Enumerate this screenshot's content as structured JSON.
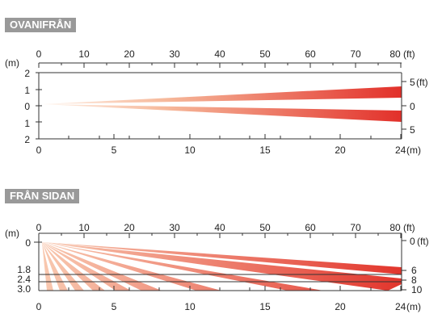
{
  "top_view": {
    "title": "OVANIFRÅN",
    "ft_ticks": [
      "0",
      "10",
      "20",
      "30",
      "40",
      "50",
      "60",
      "70",
      "80"
    ],
    "ft_unit": "(ft)",
    "m_ticks": [
      "0",
      "5",
      "10",
      "15",
      "20",
      "24"
    ],
    "m_unit": "(m)",
    "left_unit": "(m)",
    "left_ticks": [
      "2",
      "1",
      "0",
      "1",
      "2"
    ],
    "right_ticks": [
      "5",
      "0",
      "5"
    ],
    "right_unit": "(ft)"
  },
  "side_view": {
    "title": "FRÅN SIDAN",
    "ft_ticks": [
      "0",
      "10",
      "20",
      "30",
      "40",
      "50",
      "60",
      "70",
      "80"
    ],
    "ft_unit": "(ft)",
    "m_ticks": [
      "0",
      "5",
      "10",
      "15",
      "20",
      "24"
    ],
    "m_unit": "(m)",
    "left_unit": "(m)",
    "left_ticks": [
      "0",
      "1.8",
      "2.4",
      "3.0"
    ],
    "right_ticks": [
      "0",
      "6",
      "8",
      "10"
    ],
    "right_unit": "(ft)"
  },
  "colors": {
    "beam_start": "#fbd9c6",
    "beam_end": "#e5332a",
    "badge": "#999999"
  }
}
